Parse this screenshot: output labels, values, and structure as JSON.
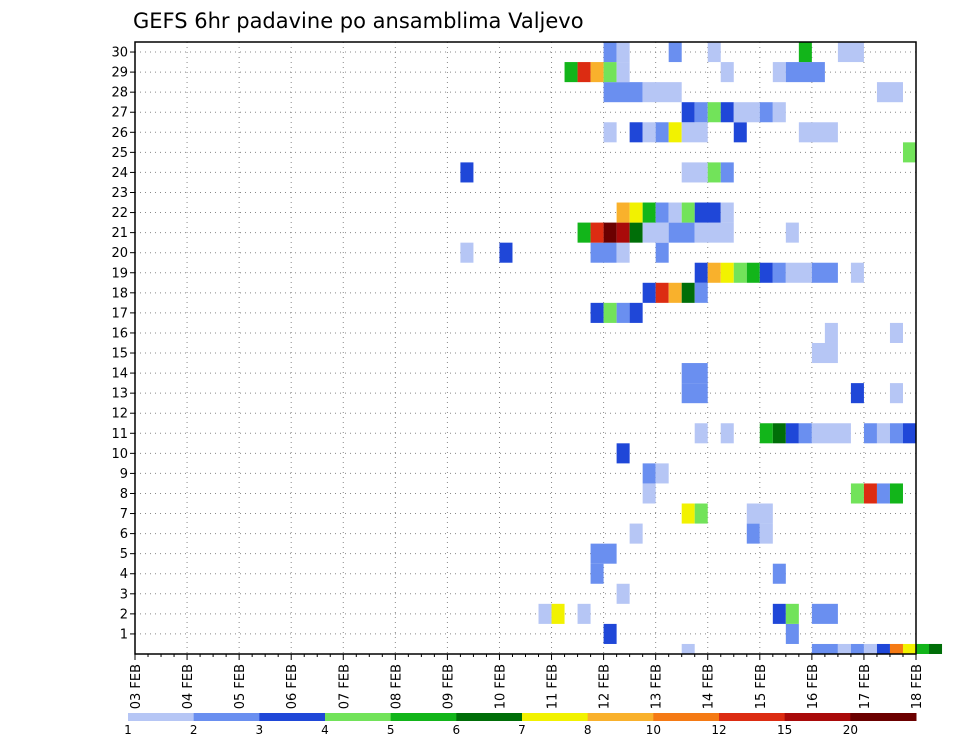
{
  "colors": {
    "c1": "#b6c6f5",
    "c2": "#6a8ff0",
    "c3": "#1f47d8",
    "c4": "#72e35a",
    "c5": "#12b51a",
    "c6": "#006e08",
    "c7": "#f2f200",
    "c8": "#f9b12c",
    "c9": "#f57a14",
    "c10": "#dc2c12",
    "c11": "#a90a0a",
    "c12": "#6b0000",
    "frame": "#000000",
    "grid": "#888888"
  },
  "chart_data": {
    "type": "heatmap",
    "title": "GEFS 6hr padavine po ansamblima Valjevo",
    "xlabel": "",
    "ylabel": "",
    "x_start": "03 FEB",
    "x_end": "18 FEB",
    "x_step_hours": 6,
    "x_ticks": [
      "03 FEB",
      "04 FEB",
      "05 FEB",
      "06 FEB",
      "07 FEB",
      "08 FEB",
      "09 FEB",
      "10 FEB",
      "11 FEB",
      "12 FEB",
      "13 FEB",
      "14 FEB",
      "15 FEB",
      "16 FEB",
      "17 FEB",
      "18 FEB"
    ],
    "y_ticks": [
      "1",
      "2",
      "3",
      "4",
      "5",
      "6",
      "7",
      "8",
      "9",
      "10",
      "11",
      "12",
      "13",
      "14",
      "15",
      "16",
      "17",
      "18",
      "19",
      "20",
      "21",
      "22",
      "23",
      "24",
      "25",
      "26",
      "27",
      "28",
      "29",
      "30"
    ],
    "ylim": [
      0,
      30
    ],
    "grid": "dotted",
    "colorbar": {
      "position": "bottom",
      "labels": [
        "1",
        "2",
        "3",
        "4",
        "5",
        "6",
        "7",
        "8",
        "10",
        "12",
        "15",
        "20"
      ],
      "bin_colors": [
        "c1",
        "c2",
        "c3",
        "c4",
        "c5",
        "c6",
        "c7",
        "c8",
        "c9",
        "c10",
        "c11",
        "c12"
      ]
    },
    "cells_note": "member: row index 0-30; runs: [start 6-hourly step from 03 FEB 00z, length, colour class]",
    "members": [
      {
        "member": 0,
        "runs": [
          [
            42,
            1,
            "c1"
          ],
          [
            52,
            2,
            "c2"
          ],
          [
            54,
            1,
            "c1"
          ],
          [
            55,
            1,
            "c2"
          ],
          [
            56,
            1,
            "c1"
          ],
          [
            57,
            1,
            "c3"
          ],
          [
            58,
            1,
            "c9"
          ],
          [
            59,
            1,
            "c7"
          ],
          [
            60,
            1,
            "c5"
          ],
          [
            61,
            1,
            "c6"
          ]
        ]
      },
      {
        "member": 1,
        "runs": [
          [
            36,
            1,
            "c3"
          ],
          [
            50,
            1,
            "c2"
          ]
        ]
      },
      {
        "member": 2,
        "runs": [
          [
            31,
            1,
            "c1"
          ],
          [
            32,
            1,
            "c7"
          ],
          [
            34,
            1,
            "c1"
          ],
          [
            49,
            1,
            "c3"
          ],
          [
            50,
            1,
            "c4"
          ],
          [
            52,
            2,
            "c2"
          ]
        ]
      },
      {
        "member": 3,
        "runs": [
          [
            37,
            1,
            "c1"
          ]
        ]
      },
      {
        "member": 4,
        "runs": [
          [
            35,
            1,
            "c2"
          ],
          [
            49,
            1,
            "c2"
          ]
        ]
      },
      {
        "member": 5,
        "runs": [
          [
            35,
            2,
            "c2"
          ]
        ]
      },
      {
        "member": 6,
        "runs": [
          [
            38,
            1,
            "c1"
          ],
          [
            47,
            1,
            "c2"
          ],
          [
            48,
            1,
            "c1"
          ]
        ]
      },
      {
        "member": 7,
        "runs": [
          [
            42,
            1,
            "c7"
          ],
          [
            43,
            1,
            "c4"
          ],
          [
            47,
            2,
            "c1"
          ]
        ]
      },
      {
        "member": 8,
        "runs": [
          [
            39,
            1,
            "c1"
          ],
          [
            55,
            1,
            "c4"
          ],
          [
            56,
            1,
            "c10"
          ],
          [
            57,
            1,
            "c2"
          ],
          [
            58,
            1,
            "c5"
          ]
        ]
      },
      {
        "member": 9,
        "runs": [
          [
            39,
            1,
            "c2"
          ],
          [
            40,
            1,
            "c1"
          ]
        ]
      },
      {
        "member": 10,
        "runs": [
          [
            37,
            1,
            "c3"
          ]
        ]
      },
      {
        "member": 11,
        "runs": [
          [
            43,
            1,
            "c1"
          ],
          [
            45,
            1,
            "c1"
          ],
          [
            48,
            1,
            "c5"
          ],
          [
            49,
            1,
            "c6"
          ],
          [
            50,
            1,
            "c3"
          ],
          [
            51,
            1,
            "c2"
          ],
          [
            52,
            3,
            "c1"
          ],
          [
            56,
            1,
            "c2"
          ],
          [
            57,
            1,
            "c1"
          ],
          [
            58,
            1,
            "c2"
          ],
          [
            59,
            1,
            "c3"
          ]
        ]
      },
      {
        "member": 12,
        "runs": []
      },
      {
        "member": 13,
        "runs": [
          [
            42,
            2,
            "c2"
          ],
          [
            55,
            1,
            "c3"
          ],
          [
            58,
            1,
            "c1"
          ]
        ]
      },
      {
        "member": 14,
        "runs": [
          [
            42,
            2,
            "c2"
          ]
        ]
      },
      {
        "member": 15,
        "runs": [
          [
            52,
            2,
            "c1"
          ]
        ]
      },
      {
        "member": 16,
        "runs": [
          [
            53,
            1,
            "c1"
          ],
          [
            58,
            1,
            "c1"
          ]
        ]
      },
      {
        "member": 17,
        "runs": [
          [
            35,
            1,
            "c3"
          ],
          [
            36,
            1,
            "c4"
          ],
          [
            37,
            1,
            "c2"
          ],
          [
            38,
            1,
            "c3"
          ]
        ]
      },
      {
        "member": 18,
        "runs": [
          [
            39,
            1,
            "c3"
          ],
          [
            40,
            1,
            "c10"
          ],
          [
            41,
            1,
            "c8"
          ],
          [
            42,
            1,
            "c6"
          ],
          [
            43,
            1,
            "c2"
          ]
        ]
      },
      {
        "member": 19,
        "runs": [
          [
            43,
            1,
            "c3"
          ],
          [
            44,
            1,
            "c8"
          ],
          [
            45,
            1,
            "c7"
          ],
          [
            46,
            1,
            "c4"
          ],
          [
            47,
            1,
            "c5"
          ],
          [
            48,
            1,
            "c3"
          ],
          [
            49,
            1,
            "c2"
          ],
          [
            50,
            2,
            "c1"
          ],
          [
            52,
            2,
            "c2"
          ],
          [
            55,
            1,
            "c1"
          ]
        ]
      },
      {
        "member": 20,
        "runs": [
          [
            25,
            1,
            "c1"
          ],
          [
            28,
            1,
            "c3"
          ],
          [
            35,
            2,
            "c2"
          ],
          [
            37,
            1,
            "c1"
          ],
          [
            40,
            1,
            "c2"
          ]
        ]
      },
      {
        "member": 21,
        "runs": [
          [
            34,
            1,
            "c5"
          ],
          [
            35,
            1,
            "c10"
          ],
          [
            36,
            1,
            "c12"
          ],
          [
            37,
            1,
            "c11"
          ],
          [
            38,
            1,
            "c6"
          ],
          [
            39,
            2,
            "c1"
          ],
          [
            41,
            2,
            "c2"
          ],
          [
            43,
            3,
            "c1"
          ],
          [
            50,
            1,
            "c1"
          ]
        ]
      },
      {
        "member": 22,
        "runs": [
          [
            37,
            1,
            "c8"
          ],
          [
            38,
            1,
            "c7"
          ],
          [
            39,
            1,
            "c5"
          ],
          [
            40,
            1,
            "c2"
          ],
          [
            41,
            1,
            "c1"
          ],
          [
            42,
            1,
            "c4"
          ],
          [
            43,
            2,
            "c3"
          ],
          [
            45,
            1,
            "c1"
          ]
        ]
      },
      {
        "member": 23,
        "runs": []
      },
      {
        "member": 24,
        "runs": [
          [
            25,
            1,
            "c3"
          ],
          [
            42,
            2,
            "c1"
          ],
          [
            44,
            1,
            "c4"
          ],
          [
            45,
            1,
            "c2"
          ]
        ]
      },
      {
        "member": 25,
        "runs": [
          [
            59,
            1,
            "c4"
          ]
        ]
      },
      {
        "member": 26,
        "runs": [
          [
            36,
            1,
            "c1"
          ],
          [
            38,
            1,
            "c3"
          ],
          [
            39,
            1,
            "c1"
          ],
          [
            40,
            1,
            "c2"
          ],
          [
            41,
            1,
            "c7"
          ],
          [
            42,
            2,
            "c1"
          ],
          [
            46,
            1,
            "c3"
          ],
          [
            51,
            3,
            "c1"
          ]
        ]
      },
      {
        "member": 27,
        "runs": [
          [
            42,
            1,
            "c3"
          ],
          [
            43,
            1,
            "c2"
          ],
          [
            44,
            1,
            "c4"
          ],
          [
            45,
            1,
            "c3"
          ],
          [
            46,
            2,
            "c1"
          ],
          [
            48,
            1,
            "c2"
          ],
          [
            49,
            1,
            "c1"
          ]
        ]
      },
      {
        "member": 28,
        "runs": [
          [
            36,
            3,
            "c2"
          ],
          [
            39,
            3,
            "c1"
          ],
          [
            57,
            2,
            "c1"
          ]
        ]
      },
      {
        "member": 29,
        "runs": [
          [
            33,
            1,
            "c5"
          ],
          [
            34,
            1,
            "c10"
          ],
          [
            35,
            1,
            "c8"
          ],
          [
            36,
            1,
            "c4"
          ],
          [
            37,
            1,
            "c1"
          ],
          [
            45,
            1,
            "c1"
          ],
          [
            49,
            1,
            "c1"
          ],
          [
            50,
            3,
            "c2"
          ]
        ]
      },
      {
        "member": 30,
        "runs": [
          [
            36,
            1,
            "c2"
          ],
          [
            37,
            1,
            "c1"
          ],
          [
            41,
            1,
            "c2"
          ],
          [
            44,
            1,
            "c1"
          ],
          [
            51,
            1,
            "c5"
          ],
          [
            54,
            2,
            "c1"
          ]
        ]
      }
    ]
  }
}
